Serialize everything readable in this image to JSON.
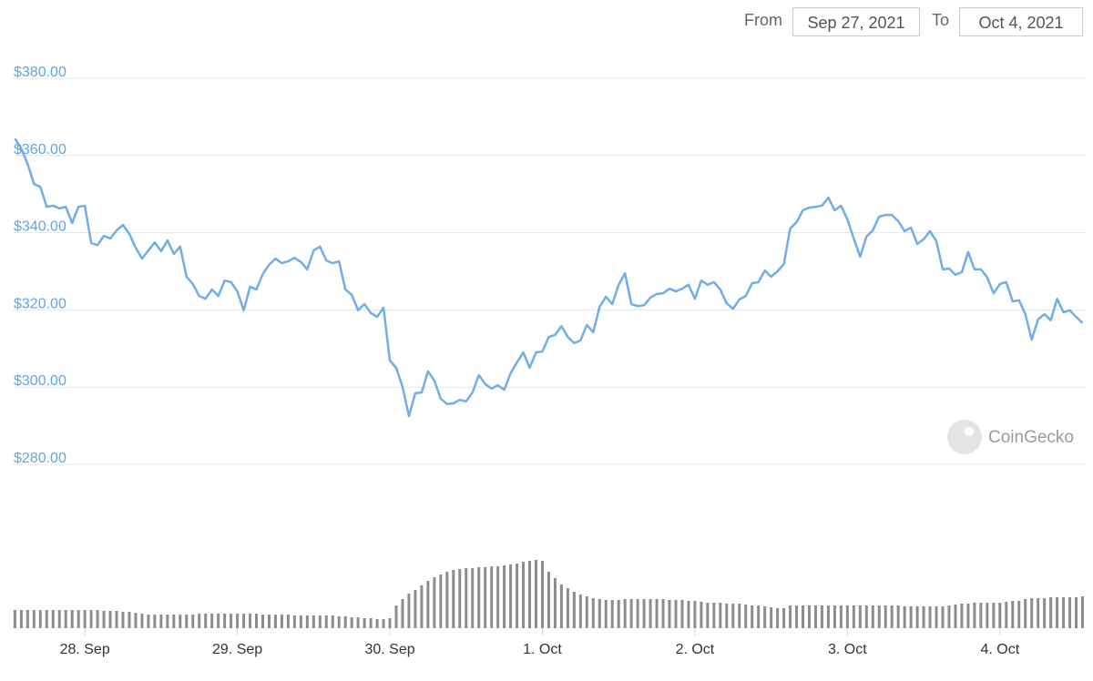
{
  "header": {
    "from_label": "From",
    "from_value": "Sep 27, 2021",
    "to_label": "To",
    "to_value": "Oct 4, 2021"
  },
  "watermark": "CoinGecko",
  "chart_data": {
    "type": "line",
    "x": [
      -11,
      -10,
      -9,
      -8,
      -7,
      -6,
      -5,
      -4,
      -3,
      -2,
      -1,
      0,
      1,
      2,
      3,
      4,
      5,
      6,
      7,
      8,
      9,
      10,
      11,
      12,
      13,
      14,
      15,
      16,
      17,
      18,
      19,
      20,
      21,
      22,
      23,
      24,
      25,
      26,
      27,
      28,
      29,
      30,
      31,
      32,
      33,
      34,
      35,
      36,
      37,
      38,
      39,
      40,
      41,
      42,
      43,
      44,
      45,
      46,
      47,
      48,
      49,
      50,
      51,
      52,
      53,
      54,
      55,
      56,
      57,
      58,
      59,
      60,
      61,
      62,
      63,
      64,
      65,
      66,
      67,
      68,
      69,
      70,
      71,
      72,
      73,
      74,
      75,
      76,
      77,
      78,
      79,
      80,
      81,
      82,
      83,
      84,
      85,
      86,
      87,
      88,
      89,
      90,
      91,
      92,
      93,
      94,
      95,
      96,
      97,
      98,
      99,
      100,
      101,
      102,
      103,
      104,
      105,
      106,
      107,
      108,
      109,
      110,
      111,
      112,
      113,
      114,
      115,
      116,
      117,
      118,
      119,
      120,
      121,
      122,
      123,
      124,
      125,
      126,
      127,
      128,
      129,
      130,
      131,
      132,
      133,
      134,
      135,
      136,
      137,
      138,
      139,
      140,
      141,
      142,
      143,
      144,
      145,
      146,
      147,
      148,
      149,
      150,
      151,
      152,
      153,
      154,
      155,
      156,
      157
    ],
    "series": [
      {
        "type": "line",
        "color": "#72ade8",
        "values": [
          364.4,
          361.8,
          357.8,
          352.6,
          351.9,
          346.7,
          347.0,
          346.3,
          346.7,
          342.5,
          346.7,
          347.0,
          337.3,
          336.8,
          339.2,
          338.5,
          340.6,
          342.0,
          339.7,
          336.1,
          333.3,
          335.4,
          337.5,
          335.2,
          338.0,
          334.5,
          336.4,
          328.6,
          326.7,
          323.6,
          322.9,
          325.3,
          323.6,
          327.6,
          327.2,
          324.8,
          319.9,
          326.0,
          325.3,
          329.3,
          331.7,
          333.3,
          332.1,
          332.6,
          333.5,
          332.4,
          330.5,
          335.4,
          336.4,
          332.8,
          332.1,
          332.6,
          325.3,
          323.9,
          319.9,
          321.5,
          319.2,
          318.2,
          320.6,
          306.9,
          305.0,
          300.0,
          292.5,
          298.4,
          298.6,
          304.1,
          301.7,
          297.0,
          295.6,
          295.8,
          296.7,
          296.3,
          298.6,
          303.1,
          300.8,
          299.6,
          300.5,
          299.3,
          303.6,
          306.4,
          309.0,
          305.0,
          309.0,
          309.2,
          313.0,
          313.5,
          315.8,
          313.0,
          311.4,
          312.1,
          316.1,
          314.2,
          320.8,
          323.4,
          321.5,
          326.5,
          329.5,
          321.5,
          321.0,
          321.2,
          323.2,
          324.1,
          324.3,
          325.5,
          324.8,
          325.5,
          326.5,
          322.9,
          327.6,
          326.5,
          327.2,
          325.3,
          321.7,
          320.3,
          322.7,
          323.6,
          326.9,
          327.2,
          330.2,
          328.6,
          330.0,
          331.9,
          341.1,
          342.7,
          345.8,
          346.5,
          346.7,
          347.0,
          349.1,
          345.8,
          347.0,
          343.4,
          338.5,
          333.8,
          339.0,
          340.6,
          344.2,
          344.6,
          344.6,
          343.0,
          340.4,
          341.3,
          337.1,
          338.3,
          340.4,
          337.8,
          330.5,
          330.7,
          329.1,
          329.8,
          335.0,
          330.5,
          330.5,
          328.4,
          324.3,
          326.7,
          327.2,
          322.2,
          322.5,
          318.9,
          312.3,
          317.5,
          318.9,
          317.3,
          322.9,
          319.4,
          319.9,
          318.2,
          316.6
        ]
      },
      {
        "type": "bar",
        "axis": "y2",
        "color": "#8c8c8c",
        "values": [
          20,
          20,
          20,
          20,
          20,
          20,
          20,
          20,
          20,
          20,
          20,
          20,
          20,
          20,
          19,
          19,
          19,
          18,
          18,
          17,
          16,
          15,
          15,
          15,
          15,
          15,
          15,
          15,
          15,
          16,
          16,
          16,
          16,
          16,
          16,
          16,
          16,
          16,
          16,
          15,
          15,
          15,
          15,
          15,
          14,
          14,
          14,
          14,
          14,
          14,
          14,
          13,
          13,
          12,
          12,
          11,
          11,
          10,
          10,
          11,
          25,
          32,
          38,
          42,
          47,
          52,
          56,
          59,
          62,
          64,
          65,
          66,
          66,
          67,
          67,
          68,
          68,
          69,
          70,
          71,
          73,
          74,
          75,
          74,
          62,
          55,
          48,
          44,
          40,
          37,
          35,
          33,
          32,
          31,
          31,
          31,
          32,
          32,
          32,
          32,
          32,
          32,
          32,
          31,
          31,
          31,
          30,
          30,
          29,
          28,
          28,
          28,
          27,
          27,
          27,
          26,
          25,
          25,
          24,
          23,
          22,
          22,
          25,
          25,
          25,
          25,
          25,
          25,
          25,
          25,
          25,
          25,
          25,
          25,
          25,
          25,
          25,
          25,
          25,
          25,
          24,
          24,
          24,
          24,
          24,
          24,
          24,
          25,
          26,
          27,
          27,
          28,
          28,
          28,
          28,
          28,
          29,
          30,
          30,
          32,
          33,
          33,
          33,
          34,
          34,
          34,
          34,
          34,
          35
        ]
      }
    ],
    "xlim": [
      -11.2,
      157.5
    ],
    "xticks": [
      {
        "value": 0,
        "label": "28. Sep"
      },
      {
        "value": 24,
        "label": "29. Sep"
      },
      {
        "value": 48,
        "label": "30. Sep"
      },
      {
        "value": 72,
        "label": "1. Oct"
      },
      {
        "value": 96,
        "label": "2. Oct"
      },
      {
        "value": 120,
        "label": "3. Oct"
      },
      {
        "value": 144,
        "label": "4. Oct"
      }
    ],
    "ylim": [
      280,
      380
    ],
    "yticks": [
      {
        "value": 280,
        "label": "$280.00"
      },
      {
        "value": 300,
        "label": "$300.00"
      },
      {
        "value": 320,
        "label": "$320.00"
      },
      {
        "value": 340,
        "label": "$340.00"
      },
      {
        "value": 360,
        "label": "$360.00"
      },
      {
        "value": 380,
        "label": "$380.00"
      }
    ],
    "y2lim": [
      0,
      80
    ],
    "grid": true
  }
}
